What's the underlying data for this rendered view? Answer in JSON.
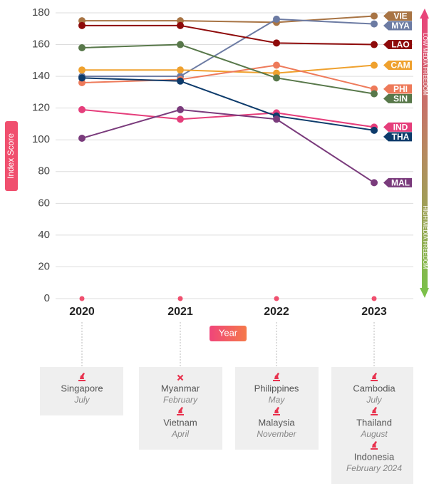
{
  "chart_data": {
    "type": "line",
    "y_label": "Index Score",
    "x_label": "Year",
    "top_note": "LOW MEDIA FREEDOM",
    "bottom_note": "HIGH MEDIA FREEDOM",
    "categories": [
      "2020",
      "2021",
      "2022",
      "2023"
    ],
    "ylim": [
      0,
      180
    ],
    "yticks": [
      0,
      20,
      40,
      60,
      80,
      100,
      120,
      140,
      160,
      180
    ],
    "grid": true,
    "series": [
      {
        "name": "VIE",
        "color": "#a87444",
        "values": [
          175,
          175,
          174,
          178
        ]
      },
      {
        "name": "MYA",
        "color": "#6c7ba3",
        "values": [
          140,
          140,
          176,
          173
        ]
      },
      {
        "name": "LAO",
        "color": "#8e0a0a",
        "values": [
          172,
          172,
          161,
          160
        ]
      },
      {
        "name": "CAM",
        "color": "#efa12e",
        "values": [
          144,
          144,
          142,
          147
        ]
      },
      {
        "name": "PHI",
        "color": "#ee7a5a",
        "values": [
          136,
          138,
          147,
          132
        ]
      },
      {
        "name": "SIN",
        "color": "#58784a",
        "values": [
          158,
          160,
          139,
          129
        ]
      },
      {
        "name": "IND",
        "color": "#e53e7b",
        "values": [
          119,
          113,
          117,
          108
        ]
      },
      {
        "name": "THA",
        "color": "#0d3b6b",
        "values": [
          139,
          137,
          115,
          106
        ]
      },
      {
        "name": "MAL",
        "color": "#7a3b7c",
        "values": [
          101,
          119,
          113,
          73
        ]
      }
    ]
  },
  "events": [
    [
      {
        "country": "Singapore",
        "month": "July",
        "icon": "stamp"
      }
    ],
    [
      {
        "country": "Myanmar",
        "month": "February",
        "icon": "cross"
      },
      {
        "country": "Vietnam",
        "month": "April",
        "icon": "stamp"
      }
    ],
    [
      {
        "country": "Philippines",
        "month": "May",
        "icon": "stamp"
      },
      {
        "country": "Malaysia",
        "month": "November",
        "icon": "stamp"
      }
    ],
    [
      {
        "country": "Cambodia",
        "month": "July",
        "icon": "stamp"
      },
      {
        "country": "Thailand",
        "month": "August",
        "icon": "stamp"
      },
      {
        "country": "Indonesia",
        "month": "February 2024",
        "icon": "stamp"
      }
    ]
  ]
}
